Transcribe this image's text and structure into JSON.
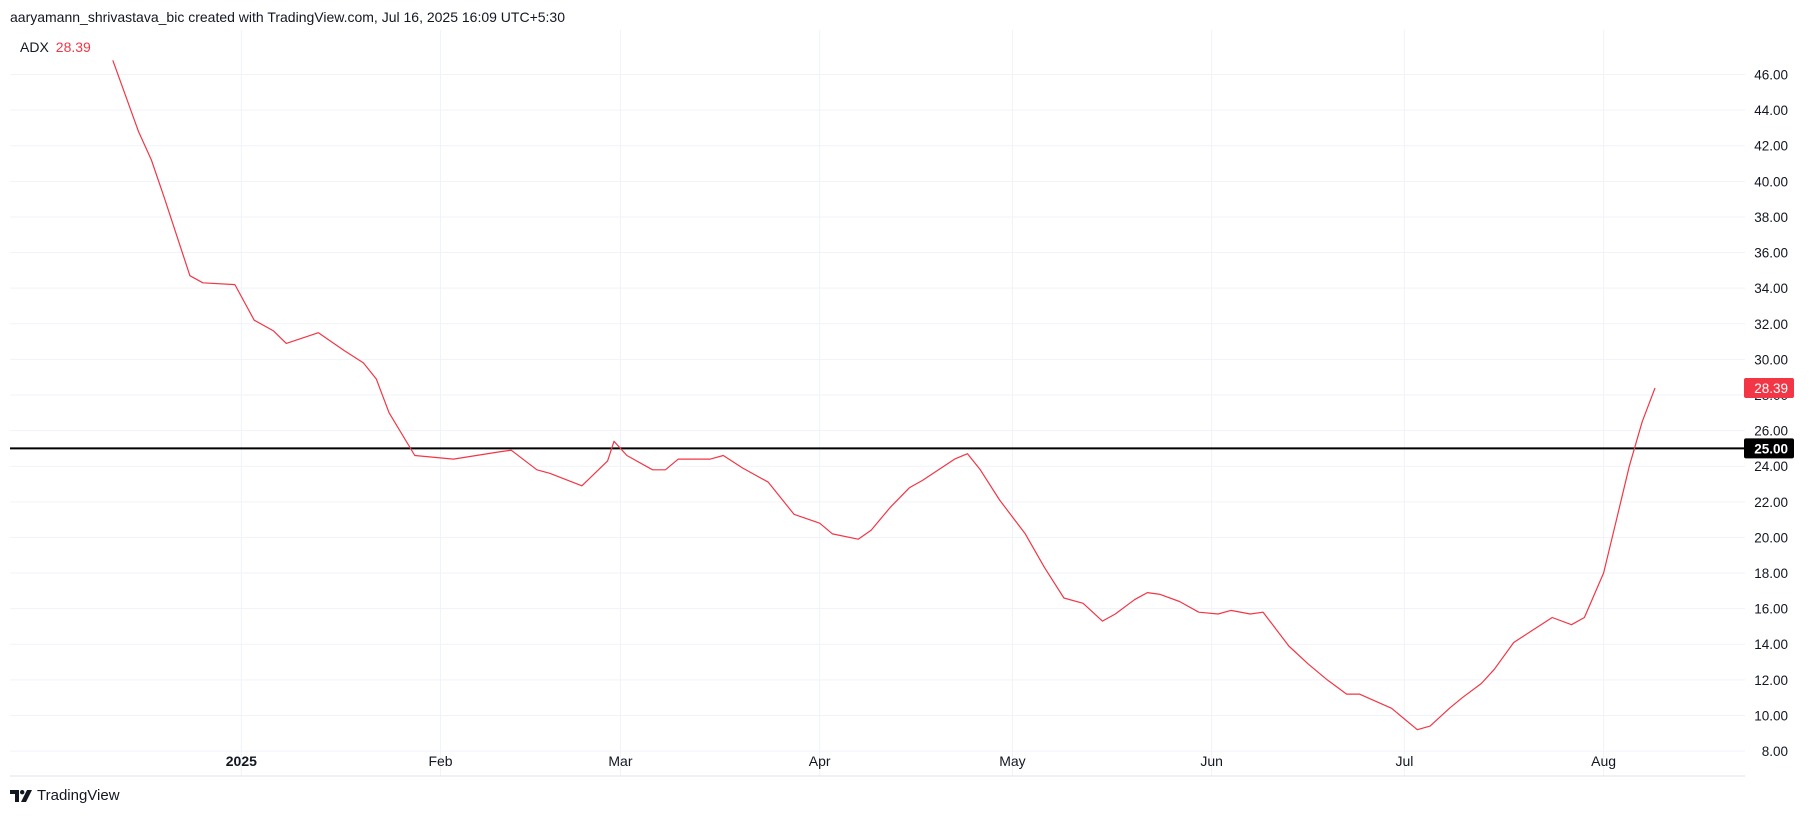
{
  "header": {
    "credit": "aaryamann_shrivastava_bic created with TradingView.com, Jul 16, 2025 16:09 UTC+5:30"
  },
  "legend": {
    "name": "ADX",
    "value": "28.39"
  },
  "footer": {
    "brand": "TradingView",
    "logo_icon": "tradingview-logo-icon"
  },
  "colors": {
    "series": "#f23645",
    "reference_line": "#000000",
    "grid": "#f0f3fa",
    "badge_series_bg": "#f23645",
    "badge_ref_bg": "#000000"
  },
  "chart_data": {
    "type": "line",
    "x_axis": {
      "type": "date",
      "ticks": [
        {
          "label": "2025",
          "date": "2025-01-01",
          "bold": true
        },
        {
          "label": "Feb",
          "date": "2025-02-01"
        },
        {
          "label": "Mar",
          "date": "2025-03-01"
        },
        {
          "label": "Apr",
          "date": "2025-04-01"
        },
        {
          "label": "May",
          "date": "2025-05-01"
        },
        {
          "label": "Jun",
          "date": "2025-06-01"
        },
        {
          "label": "Jul",
          "date": "2025-07-01"
        },
        {
          "label": "Aug",
          "date": "2025-08-01"
        }
      ],
      "range": [
        "2024-11-26",
        "2025-08-23"
      ]
    },
    "y_axis": {
      "position": "right",
      "ticks": [
        "8.00",
        "10.00",
        "12.00",
        "14.00",
        "16.00",
        "18.00",
        "20.00",
        "22.00",
        "24.00",
        "26.00",
        "28.00",
        "30.00",
        "32.00",
        "34.00",
        "36.00",
        "38.00",
        "40.00",
        "42.00",
        "44.00",
        "46.00"
      ],
      "ylim": [
        6.6,
        48.5
      ]
    },
    "grid": true,
    "reference_line": {
      "value": 25,
      "label": "25.00"
    },
    "series": [
      {
        "name": "ADX",
        "last_value_label": "28.39",
        "points": [
          [
            "2024-12-12",
            46.8
          ],
          [
            "2024-12-16",
            42.8
          ],
          [
            "2024-12-18",
            41.2
          ],
          [
            "2024-12-20",
            39.1
          ],
          [
            "2024-12-24",
            34.7
          ],
          [
            "2024-12-26",
            34.3
          ],
          [
            "2024-12-31",
            34.2
          ],
          [
            "2025-01-03",
            32.2
          ],
          [
            "2025-01-06",
            31.6
          ],
          [
            "2025-01-08",
            30.9
          ],
          [
            "2025-01-13",
            31.5
          ],
          [
            "2025-01-17",
            30.5
          ],
          [
            "2025-01-20",
            29.8
          ],
          [
            "2025-01-22",
            28.9
          ],
          [
            "2025-01-24",
            27.0
          ],
          [
            "2025-01-28",
            24.6
          ],
          [
            "2025-02-03",
            24.4
          ],
          [
            "2025-02-10",
            24.8
          ],
          [
            "2025-02-12",
            24.9
          ],
          [
            "2025-02-16",
            23.8
          ],
          [
            "2025-02-18",
            23.6
          ],
          [
            "2025-02-23",
            22.9
          ],
          [
            "2025-02-27",
            24.3
          ],
          [
            "2025-02-28",
            25.4
          ],
          [
            "2025-03-02",
            24.6
          ],
          [
            "2025-03-06",
            23.8
          ],
          [
            "2025-03-08",
            23.8
          ],
          [
            "2025-03-10",
            24.4
          ],
          [
            "2025-03-15",
            24.4
          ],
          [
            "2025-03-17",
            24.6
          ],
          [
            "2025-03-20",
            23.9
          ],
          [
            "2025-03-24",
            23.1
          ],
          [
            "2025-03-28",
            21.3
          ],
          [
            "2025-04-01",
            20.8
          ],
          [
            "2025-04-03",
            20.2
          ],
          [
            "2025-04-07",
            19.9
          ],
          [
            "2025-04-09",
            20.4
          ],
          [
            "2025-04-12",
            21.7
          ],
          [
            "2025-04-15",
            22.8
          ],
          [
            "2025-04-17",
            23.2
          ],
          [
            "2025-04-22",
            24.4
          ],
          [
            "2025-04-24",
            24.7
          ],
          [
            "2025-04-26",
            23.8
          ],
          [
            "2025-04-29",
            22.1
          ],
          [
            "2025-05-03",
            20.2
          ],
          [
            "2025-05-06",
            18.3
          ],
          [
            "2025-05-09",
            16.6
          ],
          [
            "2025-05-12",
            16.3
          ],
          [
            "2025-05-15",
            15.3
          ],
          [
            "2025-05-17",
            15.7
          ],
          [
            "2025-05-20",
            16.5
          ],
          [
            "2025-05-22",
            16.9
          ],
          [
            "2025-05-24",
            16.8
          ],
          [
            "2025-05-27",
            16.4
          ],
          [
            "2025-05-30",
            15.8
          ],
          [
            "2025-06-02",
            15.7
          ],
          [
            "2025-06-04",
            15.9
          ],
          [
            "2025-06-07",
            15.7
          ],
          [
            "2025-06-09",
            15.8
          ],
          [
            "2025-06-13",
            13.9
          ],
          [
            "2025-06-16",
            12.9
          ],
          [
            "2025-06-19",
            12.0
          ],
          [
            "2025-06-22",
            11.2
          ],
          [
            "2025-06-24",
            11.2
          ],
          [
            "2025-06-29",
            10.4
          ],
          [
            "2025-07-03",
            9.2
          ],
          [
            "2025-07-05",
            9.4
          ],
          [
            "2025-07-08",
            10.4
          ],
          [
            "2025-07-10",
            11.0
          ],
          [
            "2025-07-13",
            11.8
          ],
          [
            "2025-07-15",
            12.6
          ],
          [
            "2025-07-18",
            14.1
          ],
          [
            "2025-07-21",
            14.8
          ],
          [
            "2025-07-24",
            15.5
          ],
          [
            "2025-07-27",
            15.1
          ],
          [
            "2025-07-29",
            15.5
          ],
          [
            "2025-08-01",
            18.0
          ],
          [
            "2025-08-03",
            21.0
          ],
          [
            "2025-08-05",
            24.0
          ],
          [
            "2025-08-07",
            26.5
          ],
          [
            "2025-08-09",
            28.39
          ]
        ]
      }
    ]
  }
}
